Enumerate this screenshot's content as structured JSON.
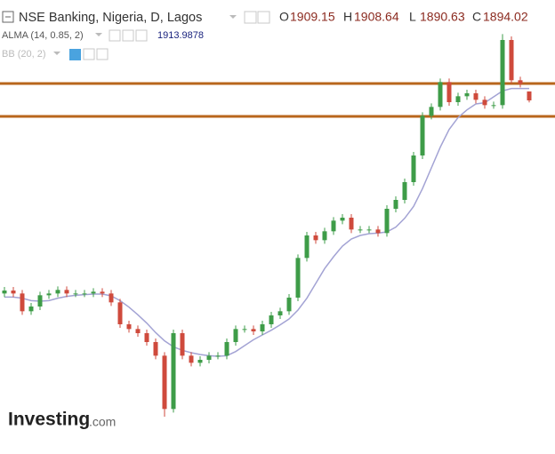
{
  "chart_data": {
    "type": "candlestick",
    "title": "NSE Banking, Nigeria, D, Lagos",
    "ohlc_labels": [
      "O",
      "H",
      "L",
      "C"
    ],
    "open": [
      1568,
      1573,
      1568,
      1538,
      1546,
      1565,
      1568,
      1574,
      1568,
      1568,
      1568,
      1571,
      1568,
      1553,
      1516,
      1508,
      1501,
      1486,
      1463,
      1373,
      1501,
      1463,
      1451,
      1456,
      1463,
      1463,
      1486,
      1508,
      1508,
      1504,
      1516,
      1531,
      1538,
      1561,
      1628,
      1666,
      1658,
      1673,
      1691,
      1696,
      1676,
      1676,
      1676,
      1670,
      1711,
      1726,
      1756,
      1801,
      1868,
      1883,
      1925,
      1891,
      1901,
      1906,
      1895,
      1886,
      1886,
      1996,
      1928,
      1909.15
    ],
    "high": [
      1579,
      1579,
      1574,
      1552,
      1571,
      1574,
      1580,
      1580,
      1574,
      1574,
      1577,
      1577,
      1574,
      1559,
      1522,
      1514,
      1507,
      1492,
      1469,
      1507,
      1507,
      1469,
      1462,
      1469,
      1469,
      1492,
      1514,
      1514,
      1514,
      1522,
      1537,
      1544,
      1567,
      1634,
      1672,
      1672,
      1679,
      1697,
      1702,
      1702,
      1682,
      1682,
      1682,
      1717,
      1732,
      1762,
      1807,
      1874,
      1889,
      1931,
      1931,
      1907,
      1912,
      1912,
      1901,
      1892,
      2006,
      2002,
      1934,
      1908.64
    ],
    "low": [
      1562,
      1562,
      1532,
      1532,
      1540,
      1559,
      1562,
      1562,
      1562,
      1562,
      1562,
      1562,
      1547,
      1510,
      1502,
      1495,
      1480,
      1457,
      1360,
      1367,
      1457,
      1445,
      1445,
      1450,
      1457,
      1457,
      1480,
      1502,
      1498,
      1498,
      1510,
      1525,
      1532,
      1555,
      1622,
      1652,
      1652,
      1667,
      1685,
      1670,
      1670,
      1670,
      1664,
      1664,
      1705,
      1720,
      1750,
      1795,
      1862,
      1877,
      1885,
      1885,
      1895,
      1889,
      1880,
      1880,
      1880,
      1922,
      1916,
      1890.63
    ],
    "close": [
      1573,
      1568,
      1538,
      1546,
      1565,
      1568,
      1574,
      1568,
      1568,
      1568,
      1571,
      1568,
      1553,
      1516,
      1508,
      1501,
      1486,
      1463,
      1373,
      1501,
      1463,
      1451,
      1456,
      1463,
      1463,
      1486,
      1508,
      1508,
      1504,
      1516,
      1531,
      1538,
      1561,
      1628,
      1666,
      1658,
      1673,
      1691,
      1696,
      1676,
      1676,
      1676,
      1670,
      1711,
      1726,
      1756,
      1801,
      1868,
      1883,
      1925,
      1891,
      1901,
      1906,
      1895,
      1886,
      1886,
      1996,
      1928,
      1922,
      1894.02
    ],
    "up_color": "#3e9c48",
    "down_color": "#cf4a3c",
    "ylim": [
      1297,
      2063.5
    ],
    "hlines": [
      1922.5,
      1867
    ],
    "hline_color": "#b8661c",
    "indicators": [
      {
        "name": "ALMA (14, 0.85, 2)",
        "color": "#a3a3d4",
        "values": [
          1562,
          1562,
          1560,
          1556,
          1555,
          1556,
          1560,
          1563,
          1565,
          1566,
          1567,
          1567,
          1564,
          1556,
          1545,
          1532,
          1518,
          1502,
          1488,
          1478,
          1472,
          1468,
          1465,
          1463,
          1462,
          1463,
          1470,
          1480,
          1490,
          1498,
          1506,
          1515,
          1525,
          1540,
          1560,
          1585,
          1610,
          1630,
          1648,
          1660,
          1666,
          1669,
          1670,
          1672,
          1680,
          1695,
          1715,
          1745,
          1780,
          1815,
          1845,
          1865,
          1878,
          1888,
          1890,
          1900,
          1910,
          1914,
          1914,
          1913.9878
        ]
      },
      {
        "name": "BB (20, 2)"
      }
    ]
  },
  "watermark": {
    "brand": "Investing",
    "suffix": ".com"
  }
}
